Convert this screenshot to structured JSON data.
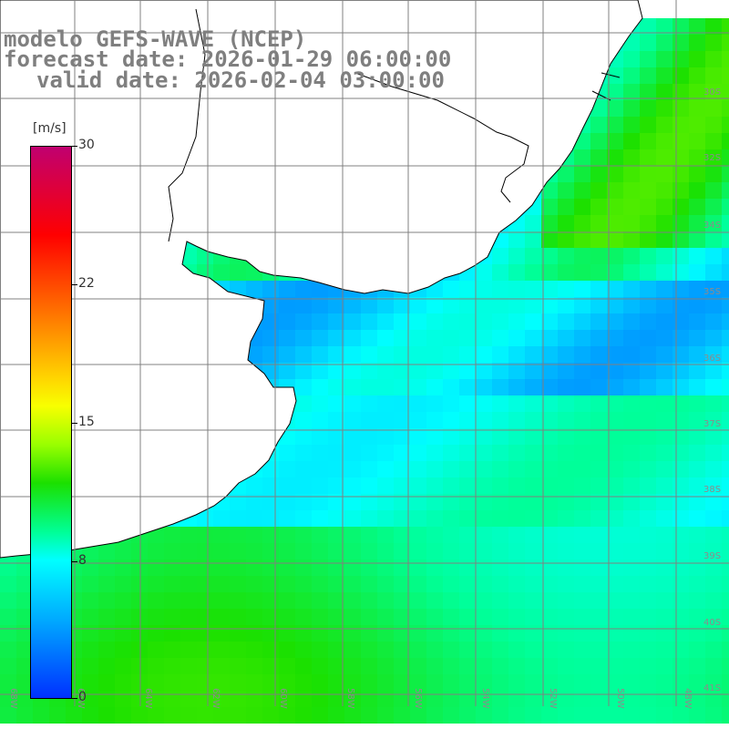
{
  "title": {
    "line1": "modelo GEFS-WAVE (NCEP)",
    "line2": "forecast date: 2026-01-29 06:00:00",
    "line3": "valid date: 2026-02-04 03:00:00"
  },
  "colorbar": {
    "unit": "[m/s]",
    "ticks": [
      "30",
      "22",
      "15",
      "8",
      "0"
    ],
    "min": 0,
    "max": 30,
    "colors": [
      "#0030ff",
      "#00a8ff",
      "#00ffff",
      "#00ff99",
      "#1be000",
      "#9aff00",
      "#f8ff00",
      "#ffd500",
      "#ff7a00",
      "#ff0000",
      "#c00070"
    ]
  },
  "map": {
    "lat_labels": [
      "30S",
      "32S",
      "34S",
      "35S",
      "36S",
      "37S",
      "38S",
      "39S",
      "40S",
      "41S"
    ],
    "lon_labels": [
      "68W",
      "66W",
      "64W",
      "62W",
      "60W",
      "58W",
      "56W",
      "54W",
      "52W",
      "50W",
      "48W"
    ],
    "land_color": "#ffffff",
    "grid_color": "#808080"
  }
}
